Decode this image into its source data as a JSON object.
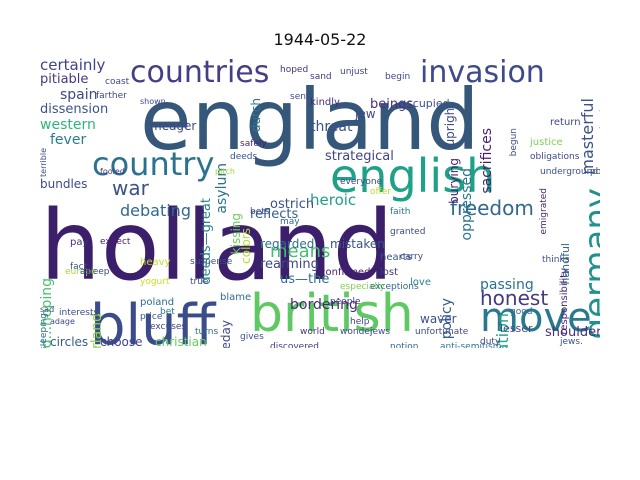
{
  "title": "1944-05-22",
  "words": [
    {
      "text": "holland",
      "color": "#3b1f6b"
    },
    {
      "text": "england",
      "color": "#35577a"
    },
    {
      "text": "english",
      "color": "#1fa187"
    },
    {
      "text": "british",
      "color": "#5ec962"
    },
    {
      "text": "bluff",
      "color": "#3a4c8a"
    },
    {
      "text": "countries",
      "color": "#433e85"
    },
    {
      "text": "invasion",
      "color": "#3e4a89"
    },
    {
      "text": "country",
      "color": "#2c728e"
    },
    {
      "text": "move",
      "color": "#2a788e"
    },
    {
      "text": "germany",
      "color": "#21918c"
    },
    {
      "text": "war",
      "color": "#3b528b"
    },
    {
      "text": "freedom",
      "color": "#31688e"
    },
    {
      "text": "honest",
      "color": "#443a83"
    },
    {
      "text": "debating",
      "color": "#31688e"
    },
    {
      "text": "certainly",
      "color": "#414487"
    },
    {
      "text": "spain",
      "color": "#3e4989"
    },
    {
      "text": "western",
      "color": "#2fb47c"
    },
    {
      "text": "fever",
      "color": "#287d8e"
    },
    {
      "text": "means",
      "color": "#44bf70"
    },
    {
      "text": "sacrifices",
      "color": "#481f70"
    },
    {
      "text": "upright",
      "color": "#3e4a89"
    },
    {
      "text": "burying",
      "color": "#482576"
    },
    {
      "text": "oppressed",
      "color": "#2a768e"
    },
    {
      "text": "masterful",
      "color": "#3b528b"
    },
    {
      "text": "beings",
      "color": "#472f7d"
    },
    {
      "text": "threat",
      "color": "#3b528b"
    },
    {
      "text": "strategical",
      "color": "#414487"
    },
    {
      "text": "heroic",
      "color": "#1f9e89"
    },
    {
      "text": "reflects",
      "color": "#355f8d"
    },
    {
      "text": "regarded",
      "color": "#2e6f8e"
    },
    {
      "text": "mistaken",
      "color": "#3a538b"
    },
    {
      "text": "liberation",
      "color": "#22a884"
    },
    {
      "text": "policy",
      "color": "#355f8d"
    },
    {
      "text": "passing",
      "color": "#2c718e"
    },
    {
      "text": "lesser",
      "color": "#3e4c8a"
    },
    {
      "text": "shoulder",
      "color": "#46337e"
    },
    {
      "text": "fatherland",
      "color": "#8fd744"
    },
    {
      "text": "and...hoping",
      "color": "#4ac16d"
    },
    {
      "text": "asylum",
      "color": "#2c728e"
    },
    {
      "text": "deeds—great",
      "color": "#26828e"
    },
    {
      "text": "colors",
      "color": "#b5de2b"
    },
    {
      "text": "rearming",
      "color": "#3f4788"
    },
    {
      "text": "us—the",
      "color": "#2d708e"
    },
    {
      "text": "bordering",
      "color": "#482878"
    },
    {
      "text": "christian",
      "color": "#65cb5e"
    },
    {
      "text": "circles",
      "color": "#365c8d"
    },
    {
      "text": "choose",
      "color": "#414487"
    },
    {
      "text": "someday",
      "color": "#3e4a89"
    },
    {
      "text": "waver",
      "color": "#3b518b"
    },
    {
      "text": "dissension",
      "color": "#3b528b"
    },
    {
      "text": "pitiable",
      "color": "#443983"
    },
    {
      "text": "bundles",
      "color": "#3e4989"
    },
    {
      "text": "meager",
      "color": "#404688"
    },
    {
      "text": "dutch",
      "color": "#2a788e"
    },
    {
      "text": "jew",
      "color": "#3f4889"
    },
    {
      "text": "ostrich",
      "color": "#3b528b"
    },
    {
      "text": "kissing",
      "color": "#6ccd5a"
    },
    {
      "text": "responsibility",
      "color": "#482475"
    },
    {
      "text": "handful",
      "color": "#31678e"
    },
    {
      "text": "occupied",
      "color": "#3b528b"
    },
    {
      "text": "kindly",
      "color": "#472d7b"
    },
    {
      "text": "territories",
      "color": "#3f4788"
    },
    {
      "text": "justice",
      "color": "#7ad151"
    },
    {
      "text": "confirmed",
      "color": "#482173"
    },
    {
      "text": "blame",
      "color": "#31688e"
    },
    {
      "text": "lost",
      "color": "#443983"
    },
    {
      "text": "love",
      "color": "#26828e"
    },
    {
      "text": "hearts",
      "color": "#3b528b"
    },
    {
      "text": "sent",
      "color": "#3e4989"
    },
    {
      "text": "begin",
      "color": "#404588"
    },
    {
      "text": "return",
      "color": "#3e4989"
    },
    {
      "text": "europe",
      "color": "#a5db36"
    },
    {
      "text": "poland",
      "color": "#2f6c8e"
    },
    {
      "text": "fact",
      "color": "#3b528b"
    },
    {
      "text": "pay",
      "color": "#472c7a"
    },
    {
      "text": "expect",
      "color": "#482071"
    },
    {
      "text": "heavy",
      "color": "#c2df23"
    },
    {
      "text": "world",
      "color": "#46327e"
    },
    {
      "text": "wonder",
      "color": "#3e4c8a"
    },
    {
      "text": "discovered",
      "color": "#443a83"
    },
    {
      "text": "notion",
      "color": "#31688e"
    },
    {
      "text": "anti-semitism",
      "color": "#2a788e"
    },
    {
      "text": "jews.",
      "color": "#3b528b"
    },
    {
      "text": "deserve",
      "color": "#482576"
    },
    {
      "text": "duty",
      "color": "#3e4989"
    },
    {
      "text": "unjust",
      "color": "#404588"
    },
    {
      "text": "safely",
      "color": "#481f70"
    },
    {
      "text": "deeds",
      "color": "#3b528b"
    },
    {
      "text": "sand",
      "color": "#443983"
    },
    {
      "text": "hoped",
      "color": "#46337e"
    },
    {
      "text": "coast",
      "color": "#3e4a89"
    },
    {
      "text": "sleeping",
      "color": "#31688e"
    },
    {
      "text": "yogurt",
      "color": "#c8e020"
    },
    {
      "text": "price",
      "color": "#3b528b"
    },
    {
      "text": "bet",
      "color": "#2a788e"
    },
    {
      "text": "true",
      "color": "#3e4989"
    },
    {
      "text": "turns",
      "color": "#31688e"
    },
    {
      "text": "adage",
      "color": "#3e4989"
    },
    {
      "text": "sad",
      "color": "#3b528b"
    },
    {
      "text": "pitch",
      "color": "#a0da39"
    },
    {
      "text": "asleep",
      "color": "#3e4989"
    },
    {
      "text": "excuses",
      "color": "#404588"
    },
    {
      "text": "gives",
      "color": "#3b528b"
    },
    {
      "text": "unfortunate",
      "color": "#3e4c8a"
    },
    {
      "text": "especially",
      "color": "#7fd34e"
    },
    {
      "text": "exceptions",
      "color": "#31688e"
    },
    {
      "text": "carry",
      "color": "#3e4989"
    },
    {
      "text": "people",
      "color": "#443983"
    },
    {
      "text": "suspense",
      "color": "#3b528b"
    },
    {
      "text": "everyone",
      "color": "#3e4989"
    },
    {
      "text": "may",
      "color": "#31688e"
    },
    {
      "text": "begun",
      "color": "#3e4989"
    },
    {
      "text": "emigrated",
      "color": "#482878"
    },
    {
      "text": "obligations",
      "color": "#3e4989"
    },
    {
      "text": "underground",
      "color": "#3b528b"
    },
    {
      "text": "possible",
      "color": "#3e4989"
    },
    {
      "text": "faith",
      "color": "#2a788e"
    },
    {
      "text": "offer",
      "color": "#b5de2b"
    },
    {
      "text": "granted",
      "color": "#3e4989"
    },
    {
      "text": "good",
      "color": "#31688e"
    },
    {
      "text": "help",
      "color": "#3e4989"
    },
    {
      "text": "jews",
      "color": "#3b528b"
    },
    {
      "text": "bets",
      "color": "#3e4989"
    },
    {
      "text": "terrible",
      "color": "#3e4989"
    },
    {
      "text": "fooled",
      "color": "#443983"
    },
    {
      "text": "shown",
      "color": "#3e4989"
    },
    {
      "text": "thinks",
      "color": "#3b528b"
    },
    {
      "text": "interests",
      "color": "#3e4989"
    },
    {
      "text": "farther",
      "color": "#3e4989"
    }
  ]
}
